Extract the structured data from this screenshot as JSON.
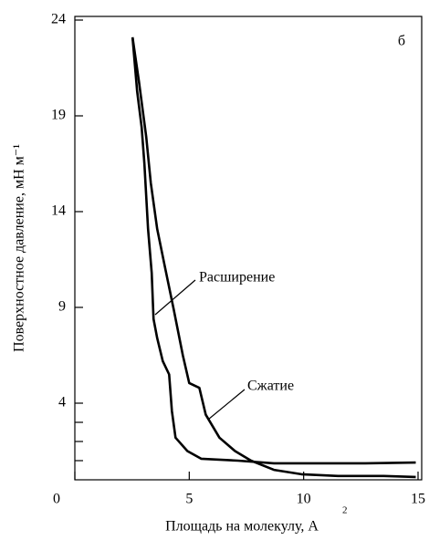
{
  "chart_data": {
    "type": "line",
    "panel_label": "б",
    "xlabel": "Площадь на молекулу, А",
    "xlabel_superscript": "2",
    "ylabel": "Поверхностное давление, мН м⁻¹",
    "annotations": [
      "Расширение",
      "Сжатие"
    ],
    "xlim": [
      0,
      15
    ],
    "ylim": [
      0,
      24
    ],
    "xticks": [
      0,
      5,
      10,
      15
    ],
    "yticks": [
      4,
      9,
      14,
      19,
      24
    ],
    "yminor_ticks": [
      1,
      2,
      3
    ],
    "series": [
      {
        "name": "Сжатие",
        "color": "#000000",
        "x": [
          2.52,
          2.8,
          3.12,
          3.32,
          3.6,
          3.92,
          4.32,
          4.72,
          5.0,
          5.44,
          5.72,
          6.32,
          7.0,
          7.7,
          8.7,
          9.9,
          11.5,
          13.5,
          14.9
        ],
        "values": [
          23.1,
          20.8,
          17.9,
          15.5,
          13.1,
          11.2,
          8.9,
          6.5,
          5.05,
          4.8,
          3.4,
          2.2,
          1.5,
          1.0,
          0.52,
          0.29,
          0.2,
          0.2,
          0.15
        ]
      },
      {
        "name": "Расширение",
        "color": "#000000",
        "x": [
          2.52,
          2.72,
          2.92,
          3.04,
          3.2,
          3.36,
          3.44,
          3.6,
          3.84,
          4.12,
          4.24,
          4.4,
          4.92,
          5.52,
          7.12,
          8.7,
          10.7,
          12.7,
          14.9
        ],
        "values": [
          23.1,
          20.3,
          18.4,
          16.5,
          13.1,
          10.8,
          8.4,
          7.4,
          6.2,
          5.5,
          3.6,
          2.2,
          1.5,
          1.1,
          1.0,
          0.86,
          0.86,
          0.86,
          0.9
        ]
      }
    ]
  }
}
